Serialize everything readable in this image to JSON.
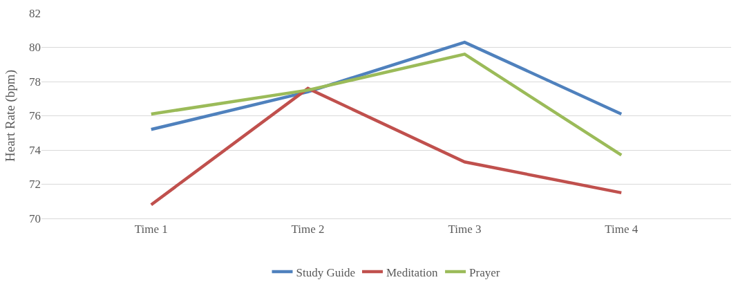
{
  "chart_data": {
    "type": "line",
    "ylabel": "Heart Rate (bpm)",
    "categories": [
      "Time 1",
      "Time 2",
      "Time 3",
      "Time 4"
    ],
    "series": [
      {
        "name": "Study Guide",
        "color": "#4f81bd",
        "values": [
          75.2,
          77.4,
          80.3,
          76.1
        ]
      },
      {
        "name": "Meditation",
        "color": "#c0504d",
        "values": [
          70.8,
          77.6,
          73.3,
          71.5
        ]
      },
      {
        "name": "Prayer",
        "color": "#9bbb59",
        "values": [
          76.1,
          77.5,
          79.6,
          73.7
        ]
      }
    ],
    "ylim": [
      70,
      82
    ],
    "yticks": [
      70,
      72,
      74,
      76,
      78,
      80,
      82
    ],
    "grid": "y",
    "legend": "bottom",
    "marker": "none",
    "line_style": "solid"
  }
}
